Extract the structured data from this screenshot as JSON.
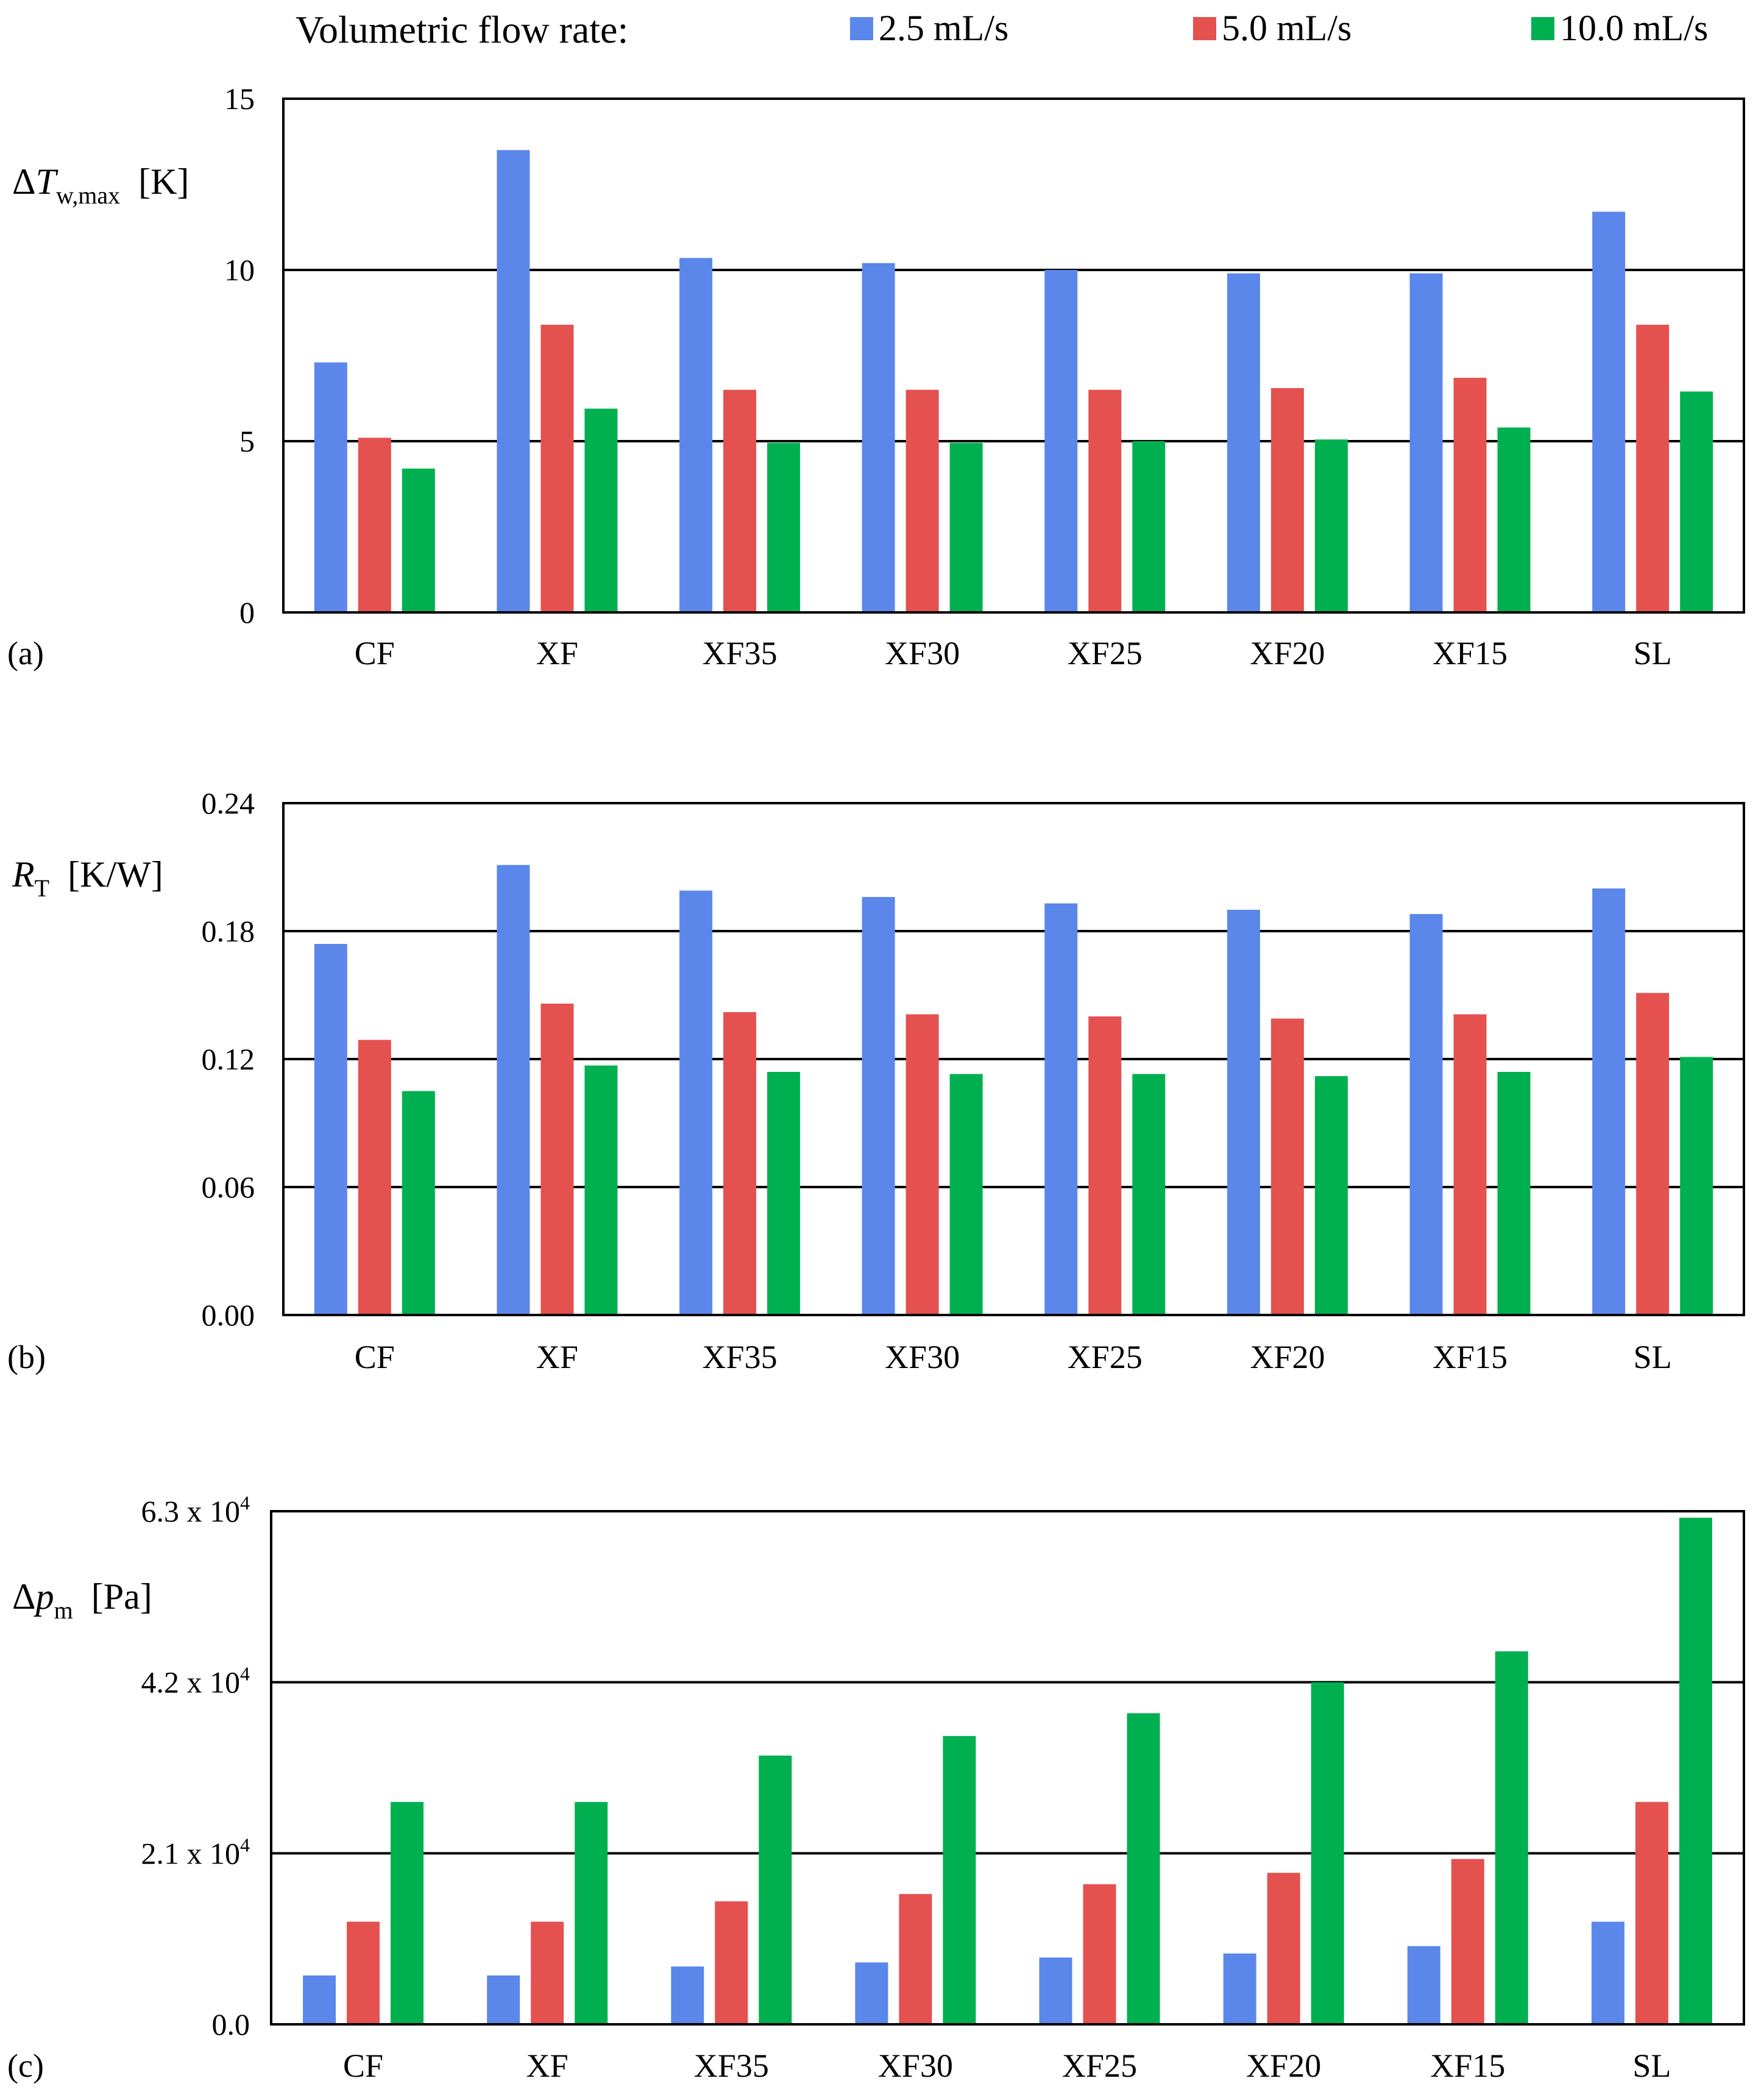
{
  "legend": {
    "title": "Volumetric flow rate:",
    "items": [
      {
        "label": "2.5 mL/s",
        "color": "#5b87ea"
      },
      {
        "label": "5.0 mL/s",
        "color": "#e4514f"
      },
      {
        "label": "10.0 mL/s",
        "color": "#00b050"
      }
    ]
  },
  "chart_data": [
    {
      "type": "bar",
      "panel_label": "(a)",
      "ylabel": {
        "symbol": "ΔT",
        "subscript": "w,max",
        "unit": "[K]"
      },
      "ylim": [
        0,
        15
      ],
      "yticks": [
        0,
        5,
        10,
        15
      ],
      "ytick_labels": [
        "0",
        "5",
        "10",
        "15"
      ],
      "grid": true,
      "categories": [
        "CF",
        "XF",
        "XF35",
        "XF30",
        "XF25",
        "XF20",
        "XF15",
        "SL"
      ],
      "series": [
        {
          "name": "2.5 mL/s",
          "values": [
            7.3,
            13.5,
            10.35,
            10.2,
            10.0,
            9.9,
            9.9,
            11.7
          ]
        },
        {
          "name": "5.0 mL/s",
          "values": [
            5.1,
            8.4,
            6.5,
            6.5,
            6.5,
            6.55,
            6.85,
            8.4
          ]
        },
        {
          "name": "10.0 mL/s",
          "values": [
            4.2,
            5.95,
            4.95,
            4.95,
            5.0,
            5.05,
            5.4,
            6.45
          ]
        }
      ]
    },
    {
      "type": "bar",
      "panel_label": "(b)",
      "ylabel": {
        "symbol": "R",
        "subscript": "T",
        "unit": "[K/W]"
      },
      "ylim": [
        0,
        0.24
      ],
      "yticks": [
        0,
        0.06,
        0.12,
        0.18,
        0.24
      ],
      "ytick_labels": [
        "0.00",
        "0.06",
        "0.12",
        "0.18",
        "0.24"
      ],
      "grid": true,
      "categories": [
        "CF",
        "XF",
        "XF35",
        "XF30",
        "XF25",
        "XF20",
        "XF15",
        "SL"
      ],
      "series": [
        {
          "name": "2.5 mL/s",
          "values": [
            0.174,
            0.211,
            0.199,
            0.196,
            0.193,
            0.19,
            0.188,
            0.2
          ]
        },
        {
          "name": "5.0 mL/s",
          "values": [
            0.129,
            0.146,
            0.142,
            0.141,
            0.14,
            0.139,
            0.141,
            0.151
          ]
        },
        {
          "name": "10.0 mL/s",
          "values": [
            0.105,
            0.117,
            0.114,
            0.113,
            0.113,
            0.112,
            0.114,
            0.121
          ]
        }
      ]
    },
    {
      "type": "bar",
      "panel_label": "(c)",
      "ylabel": {
        "symbol": "Δp",
        "subscript": "m",
        "unit": "[Pa]"
      },
      "ylim": [
        0,
        63000
      ],
      "yticks": [
        0,
        21000,
        42000,
        63000
      ],
      "ytick_labels": [
        "0.0",
        "2.1 x 10",
        "4.2 x 10",
        "6.3 x 10"
      ],
      "ytick_exponents": [
        "",
        "4",
        "4",
        "4"
      ],
      "grid": true,
      "categories": [
        "CF",
        "XF",
        "XF35",
        "XF30",
        "XF25",
        "XF20",
        "XF15",
        "SL"
      ],
      "series": [
        {
          "name": "2.5 mL/s",
          "values": [
            6000,
            6000,
            7100,
            7600,
            8200,
            8700,
            9600,
            12600
          ]
        },
        {
          "name": "5.0 mL/s",
          "values": [
            12600,
            12600,
            15100,
            16000,
            17200,
            18600,
            20300,
            27300
          ]
        },
        {
          "name": "10.0 mL/s",
          "values": [
            27300,
            27300,
            33000,
            35400,
            38200,
            42000,
            45800,
            62200
          ]
        }
      ]
    }
  ]
}
